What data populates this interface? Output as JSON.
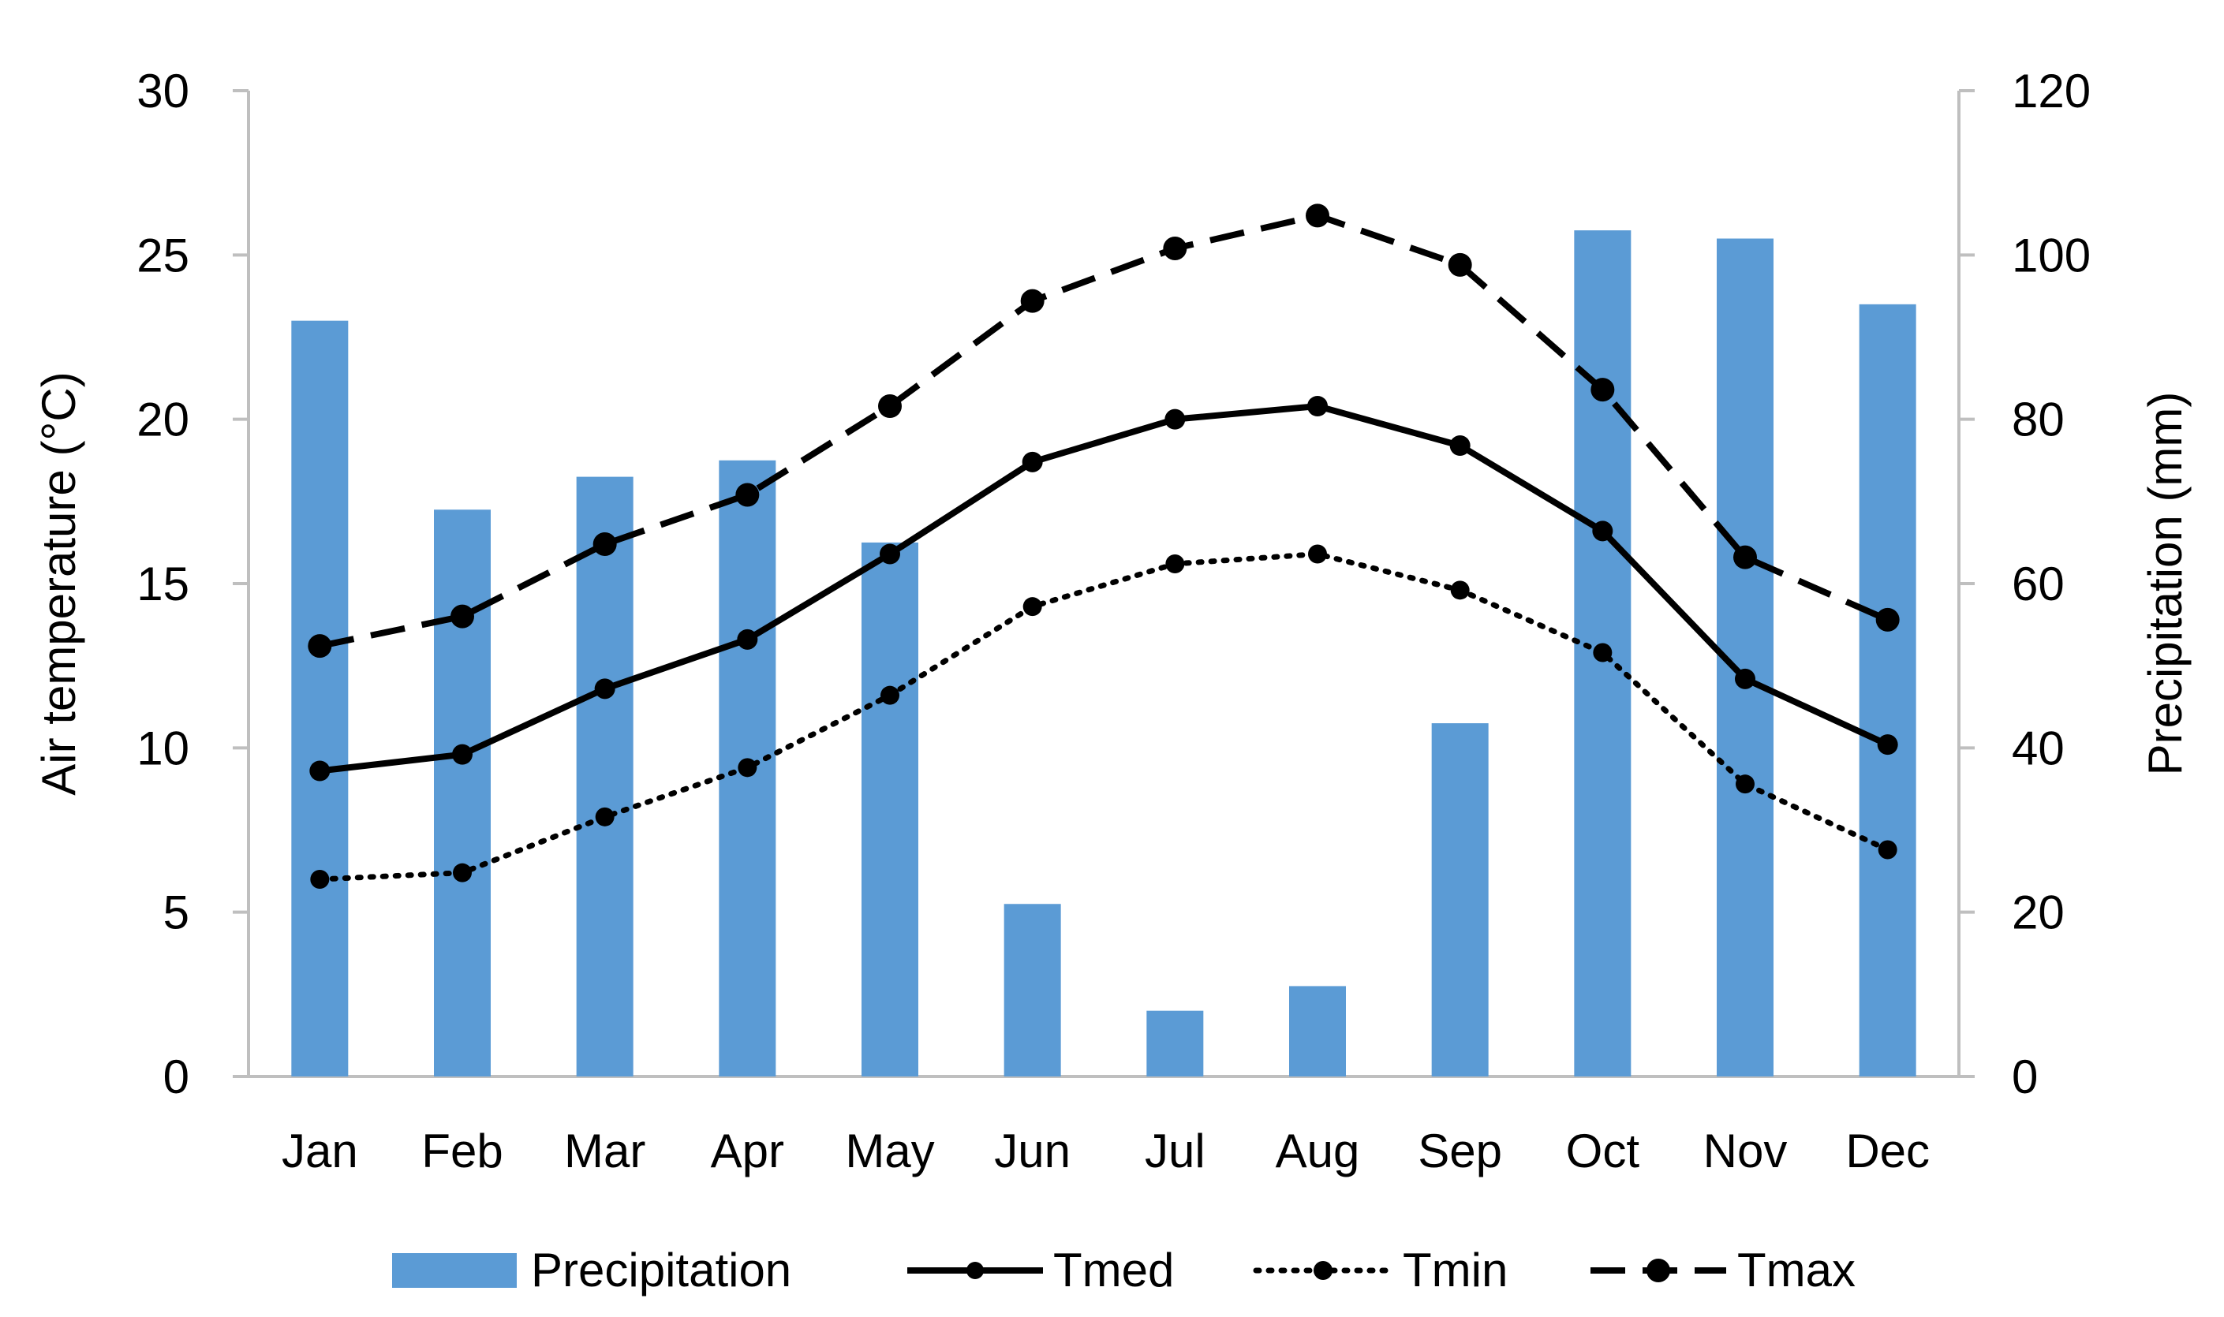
{
  "chart_data": {
    "type": "bar",
    "title": "",
    "categories": [
      "Jan",
      "Feb",
      "Mar",
      "Apr",
      "May",
      "Jun",
      "Jul",
      "Aug",
      "Sep",
      "Oct",
      "Nov",
      "Dec"
    ],
    "left_axis": {
      "label": "Air temperature (°C)",
      "ylim": [
        0,
        30
      ],
      "ticks": [
        "0",
        "5",
        "10",
        "15",
        "20",
        "25",
        "30"
      ]
    },
    "right_axis": {
      "label": "Precipitation (mm)",
      "ylim": [
        0,
        120
      ],
      "ticks": [
        "0",
        "20",
        "40",
        "60",
        "80",
        "100",
        "120"
      ]
    },
    "series": [
      {
        "name": "Precipitation",
        "type": "bar",
        "axis": "right",
        "color": "#5B9BD5",
        "values": [
          92,
          69,
          73,
          75,
          65,
          21,
          8,
          11,
          43,
          103,
          102,
          94
        ]
      },
      {
        "name": "Tmed",
        "type": "line",
        "axis": "left",
        "style": "solid",
        "color": "#000000",
        "values": [
          9.3,
          9.8,
          11.8,
          13.3,
          15.9,
          18.7,
          20.0,
          20.4,
          19.2,
          16.6,
          12.1,
          10.1
        ]
      },
      {
        "name": "Tmin",
        "type": "line",
        "axis": "left",
        "style": "dotted",
        "color": "#000000",
        "values": [
          6.0,
          6.2,
          7.9,
          9.4,
          11.6,
          14.3,
          15.6,
          15.9,
          14.8,
          12.9,
          8.9,
          6.9
        ]
      },
      {
        "name": "Tmax",
        "type": "line",
        "axis": "left",
        "style": "dashed",
        "color": "#000000",
        "values": [
          13.1,
          14.0,
          16.2,
          17.7,
          20.4,
          23.6,
          25.2,
          26.2,
          24.7,
          20.9,
          15.8,
          13.9
        ]
      }
    ],
    "legend": {
      "position": "bottom",
      "entries": [
        "Precipitation",
        "Tmed",
        "Tmin",
        "Tmax"
      ]
    },
    "grid": false
  }
}
